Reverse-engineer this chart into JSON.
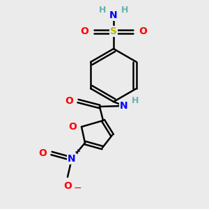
{
  "background_color": "#ebebeb",
  "atom_colors": {
    "C": "#000000",
    "H": "#6ab0b0",
    "N": "#0000ff",
    "O": "#ff0000",
    "S": "#b8b800"
  },
  "figsize": [
    3.0,
    3.0
  ],
  "dpi": 100
}
